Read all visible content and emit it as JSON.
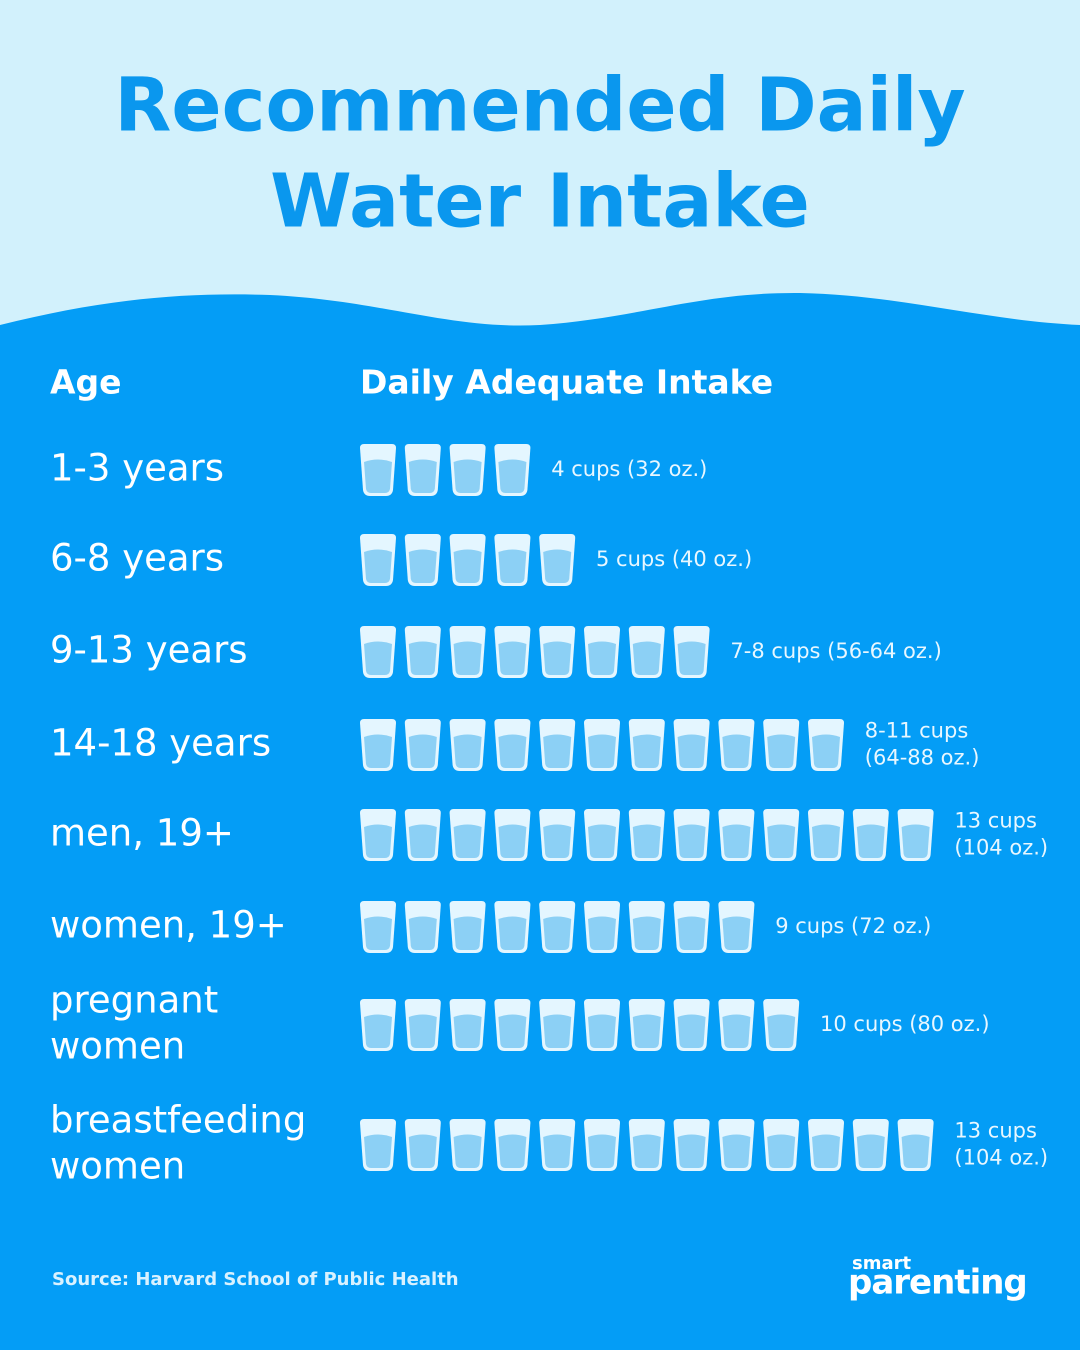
{
  "header": {
    "title": [
      "Recommended Daily",
      "Water Intake"
    ]
  },
  "table": {
    "columns": [
      "Age",
      "Daily Adequate Intake"
    ],
    "rows": [
      {
        "age": [
          "1-3 years"
        ],
        "glasses": 4,
        "intake": [
          "4 cups (32 oz.)"
        ]
      },
      {
        "age": [
          "6-8 years"
        ],
        "glasses": 5,
        "intake": [
          "5 cups (40 oz.)"
        ]
      },
      {
        "age": [
          "9-13 years"
        ],
        "glasses": 8,
        "intake": [
          "7-8 cups (56-64 oz.)"
        ]
      },
      {
        "age": [
          "14-18 years"
        ],
        "glasses": 11,
        "intake": [
          "8-11 cups",
          "(64-88 oz.)"
        ]
      },
      {
        "age": [
          "men, 19+"
        ],
        "glasses": 13,
        "intake": [
          "13 cups",
          "(104 oz.)"
        ]
      },
      {
        "age": [
          "women, 19+"
        ],
        "glasses": 9,
        "intake": [
          "9 cups (72 oz.)"
        ]
      },
      {
        "age": [
          "pregnant",
          "women"
        ],
        "glasses": 10,
        "intake": [
          "10 cups (80 oz.)"
        ]
      },
      {
        "age": [
          "breastfeeding",
          "women"
        ],
        "glasses": 13,
        "intake": [
          "13 cups",
          "(104 oz.)"
        ]
      }
    ]
  },
  "footer": {
    "source": "Source: Harvard School of Public Health",
    "logo": [
      "smart",
      "parenting"
    ]
  }
}
